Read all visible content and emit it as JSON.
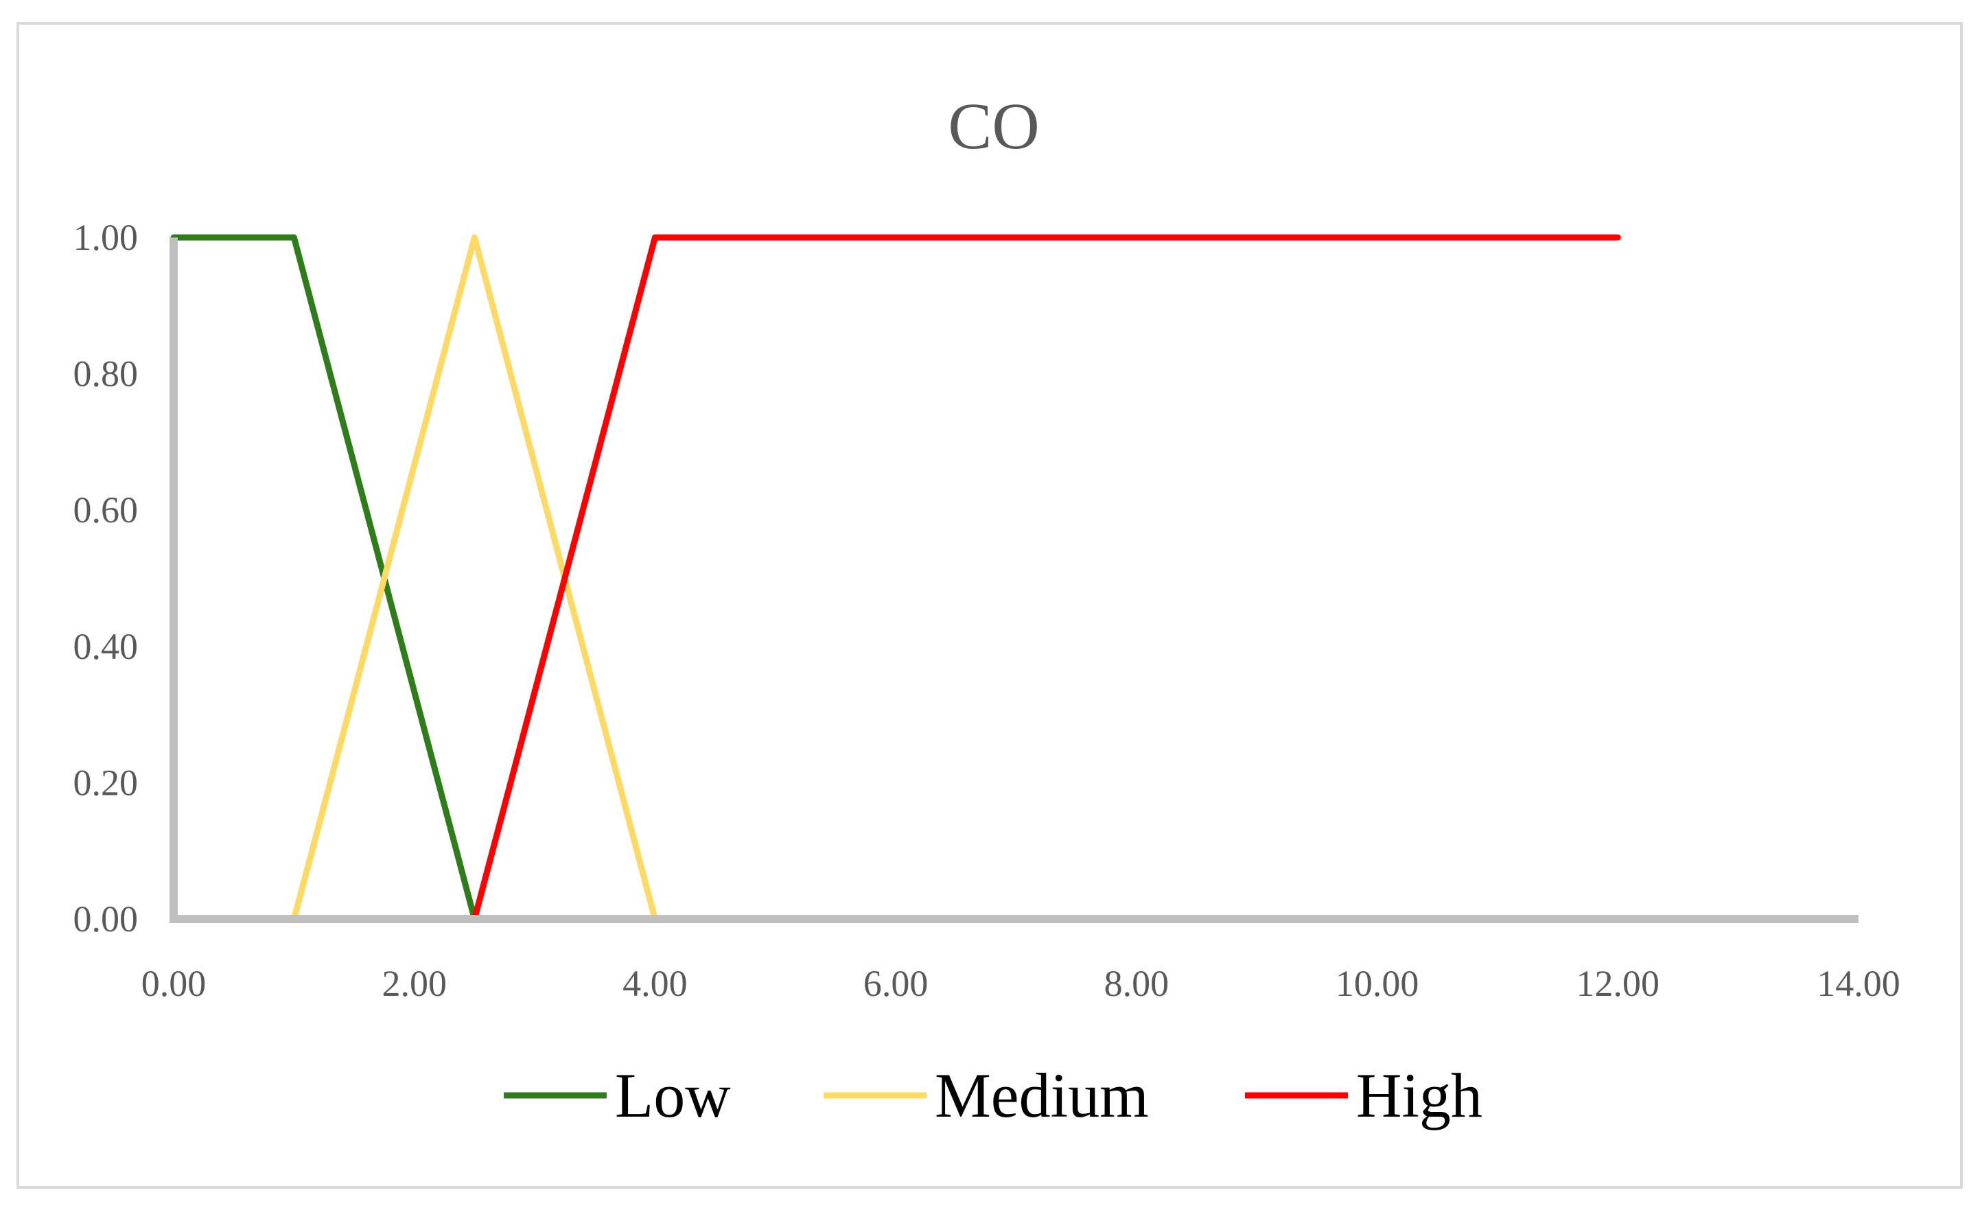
{
  "chart_data": {
    "type": "line",
    "title": "CO",
    "xlabel": "",
    "ylabel": "",
    "xlim": [
      0,
      14
    ],
    "ylim": [
      0,
      1
    ],
    "xticks": [
      0,
      2,
      4,
      6,
      8,
      10,
      12,
      14
    ],
    "yticks": [
      0,
      0.2,
      0.4,
      0.6,
      0.8,
      1.0
    ],
    "xtick_labels": [
      "0.00",
      "2.00",
      "4.00",
      "6.00",
      "8.00",
      "10.00",
      "12.00",
      "14.00"
    ],
    "ytick_labels": [
      "0.00",
      "0.20",
      "0.40",
      "0.60",
      "0.80",
      "1.00"
    ],
    "grid": false,
    "legend_position": "bottom",
    "axis_color": "#bfbfbf",
    "series": [
      {
        "name": "Low",
        "color": "#2e7d1a",
        "x": [
          0,
          1,
          2.5,
          4,
          12
        ],
        "y": [
          1,
          1,
          0,
          0,
          0
        ]
      },
      {
        "name": "Medium",
        "color": "#ffd966",
        "x": [
          0,
          1,
          2.5,
          4,
          12
        ],
        "y": [
          0,
          0,
          1,
          0,
          0
        ]
      },
      {
        "name": "High",
        "color": "#ff0000",
        "x": [
          0,
          1,
          2.5,
          4,
          12
        ],
        "y": [
          0,
          0,
          0,
          1,
          1
        ]
      }
    ]
  }
}
